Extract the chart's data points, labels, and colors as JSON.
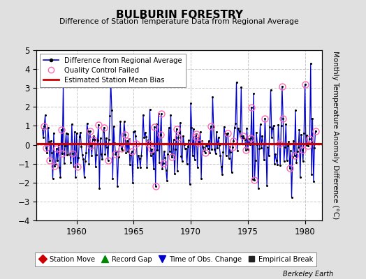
{
  "title": "BULBURIN FORESTRY",
  "subtitle": "Difference of Station Temperature Data from Regional Average",
  "ylabel": "Monthly Temperature Anomaly Difference (°C)",
  "xlabel_years": [
    1960,
    1965,
    1970,
    1975,
    1980
  ],
  "xlim": [
    1956.5,
    1981.5
  ],
  "ylim": [
    -4,
    5
  ],
  "yticks": [
    -4,
    -3,
    -2,
    -1,
    0,
    1,
    2,
    3,
    4,
    5
  ],
  "bias_line": 0.05,
  "bias_color": "#cc0000",
  "line_color": "#0000cc",
  "dot_color": "#000000",
  "qc_color": "#ff69b4",
  "background_color": "#e0e0e0",
  "plot_bg_color": "#ffffff",
  "footer_text": "Berkeley Earth",
  "legend1_items": [
    "Difference from Regional Average",
    "Quality Control Failed",
    "Estimated Station Mean Bias"
  ],
  "legend2_items": [
    "Station Move",
    "Record Gap",
    "Time of Obs. Change",
    "Empirical Break"
  ],
  "grid_color": "#bbbbbb",
  "grid_linestyle": "--",
  "grid_alpha": 0.8
}
